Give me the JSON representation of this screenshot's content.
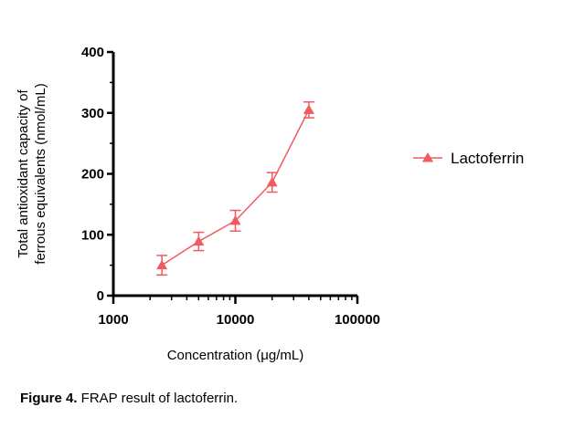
{
  "chart_data": {
    "type": "line",
    "x_scale": "log",
    "xlabel": "Concentration  (μg/mL)",
    "ylabel_lines": [
      "Total antioxidant capacity of",
      "ferrous equivalents (nmol/mL)"
    ],
    "xlim": [
      1000,
      100000
    ],
    "ylim": [
      0,
      400
    ],
    "x_ticks": [
      1000,
      10000,
      100000
    ],
    "x_tick_labels": [
      "1000",
      "10000",
      "100000"
    ],
    "y_ticks": [
      0,
      100,
      200,
      300,
      400
    ],
    "y_tick_labels": [
      "0",
      "100",
      "200",
      "300",
      "400"
    ],
    "grid": false,
    "legend_position": "right",
    "series": [
      {
        "name": "Lactoferrin",
        "color": "#f05a60",
        "marker": "triangle",
        "x": [
          2500,
          5000,
          10000,
          20000,
          40000
        ],
        "y": [
          50,
          89,
          123,
          186,
          305
        ],
        "error": [
          16,
          15,
          17,
          16,
          13
        ]
      }
    ]
  },
  "caption": {
    "label": "Figure 4.",
    "text": " FRAP result of lactoferrin."
  }
}
